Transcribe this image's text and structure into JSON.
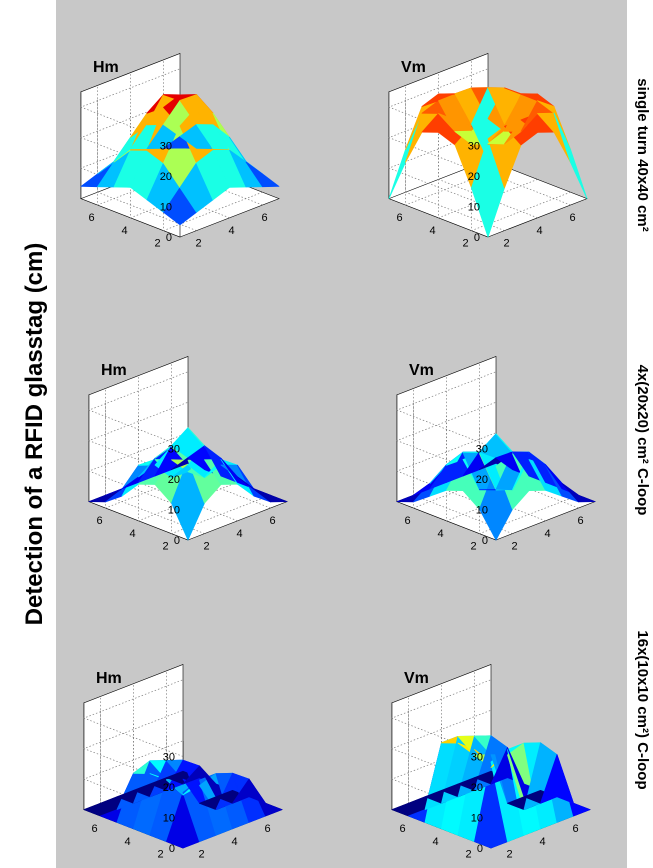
{
  "figure": {
    "ylabel": "Detection of a RFID glasstag (cm)",
    "colors": {
      "background": "#c8c8c8",
      "pane": "#ffffff",
      "grid": "#7a7a7a"
    },
    "rows": [
      {
        "label": "single turn 40x40 cm²"
      },
      {
        "label": "4x(20x20) cm² C-loop"
      },
      {
        "label": "16x(10x10 cm²) C-loop"
      }
    ]
  },
  "chart_data": [
    {
      "type": "surface",
      "title": "Hm",
      "row": "single turn 40x40 cm²",
      "x": [
        1,
        2,
        3,
        4,
        5,
        6,
        7
      ],
      "y": [
        1,
        2,
        3,
        4,
        5,
        6,
        7
      ],
      "zlim": [
        0,
        35
      ],
      "zticks": [
        0,
        10,
        20,
        30
      ],
      "xticks": [
        2,
        4,
        6
      ],
      "yticks": [
        2,
        4,
        6
      ],
      "colormap": "jet",
      "z": [
        [
          4,
          6,
          8,
          10,
          8,
          6,
          4
        ],
        [
          6,
          12,
          18,
          20,
          18,
          12,
          6
        ],
        [
          8,
          18,
          28,
          32,
          28,
          18,
          8
        ],
        [
          10,
          20,
          32,
          34,
          32,
          20,
          10
        ],
        [
          8,
          18,
          28,
          32,
          28,
          18,
          8
        ],
        [
          6,
          12,
          18,
          20,
          18,
          12,
          6
        ],
        [
          4,
          6,
          8,
          10,
          8,
          6,
          4
        ]
      ]
    },
    {
      "type": "surface",
      "title": "Vm",
      "row": "single turn 40x40 cm²",
      "x": [
        1,
        2,
        3,
        4,
        5,
        6,
        7
      ],
      "y": [
        1,
        2,
        3,
        4,
        5,
        6,
        7
      ],
      "zlim": [
        0,
        35
      ],
      "zticks": [
        0,
        10,
        20,
        30
      ],
      "xticks": [
        2,
        4,
        6
      ],
      "yticks": [
        2,
        4,
        6
      ],
      "colormap": "jet",
      "z": [
        [
          0,
          14,
          26,
          28,
          26,
          14,
          0
        ],
        [
          14,
          28,
          30,
          30,
          30,
          28,
          14
        ],
        [
          26,
          30,
          22,
          20,
          22,
          30,
          26
        ],
        [
          28,
          30,
          20,
          18,
          20,
          30,
          28
        ],
        [
          26,
          30,
          22,
          20,
          22,
          30,
          26
        ],
        [
          14,
          28,
          30,
          30,
          30,
          28,
          14
        ],
        [
          0,
          14,
          26,
          28,
          26,
          14,
          0
        ]
      ]
    },
    {
      "type": "surface",
      "title": "Hm",
      "row": "4x(20x20) cm² C-loop",
      "x": [
        1,
        2,
        3,
        4,
        5,
        6,
        7
      ],
      "y": [
        1,
        2,
        3,
        4,
        5,
        6,
        7
      ],
      "zlim": [
        0,
        35
      ],
      "zticks": [
        0,
        10,
        20,
        30
      ],
      "xticks": [
        2,
        4,
        6
      ],
      "yticks": [
        2,
        4,
        6
      ],
      "colormap": "jet",
      "z": [
        [
          0,
          10,
          14,
          12,
          6,
          2,
          0
        ],
        [
          10,
          22,
          20,
          18,
          14,
          4,
          0
        ],
        [
          14,
          20,
          14,
          10,
          12,
          6,
          0
        ],
        [
          12,
          18,
          10,
          12,
          16,
          10,
          0
        ],
        [
          6,
          14,
          12,
          16,
          20,
          12,
          0
        ],
        [
          2,
          4,
          6,
          10,
          12,
          6,
          0
        ],
        [
          0,
          0,
          0,
          0,
          0,
          0,
          0
        ]
      ]
    },
    {
      "type": "surface",
      "title": "Vm",
      "row": "4x(20x20) cm² C-loop",
      "x": [
        1,
        2,
        3,
        4,
        5,
        6,
        7
      ],
      "y": [
        1,
        2,
        3,
        4,
        5,
        6,
        7
      ],
      "zlim": [
        0,
        35
      ],
      "zticks": [
        0,
        10,
        20,
        30
      ],
      "xticks": [
        2,
        4,
        6
      ],
      "yticks": [
        2,
        4,
        6
      ],
      "colormap": "jet",
      "z": [
        [
          0,
          8,
          12,
          10,
          6,
          2,
          0
        ],
        [
          8,
          20,
          22,
          18,
          14,
          6,
          0
        ],
        [
          12,
          22,
          8,
          6,
          16,
          10,
          0
        ],
        [
          10,
          18,
          6,
          4,
          14,
          12,
          0
        ],
        [
          6,
          14,
          16,
          14,
          18,
          10,
          0
        ],
        [
          2,
          6,
          10,
          12,
          10,
          6,
          0
        ],
        [
          0,
          0,
          0,
          0,
          0,
          0,
          0
        ]
      ]
    },
    {
      "type": "surface",
      "title": "Hm",
      "row": "16x(10x10 cm²) C-loop",
      "x": [
        1,
        2,
        3,
        4,
        5,
        6,
        7
      ],
      "y": [
        1,
        2,
        3,
        4,
        5,
        6,
        7
      ],
      "zlim": [
        0,
        35
      ],
      "zticks": [
        0,
        10,
        20,
        30
      ],
      "xticks": [
        2,
        4,
        6
      ],
      "yticks": [
        2,
        4,
        6
      ],
      "colormap": "jet",
      "z": [
        [
          0,
          0,
          0,
          0,
          0,
          0,
          0
        ],
        [
          0,
          14,
          16,
          16,
          14,
          0,
          0
        ],
        [
          0,
          16,
          9,
          12,
          16,
          0,
          0
        ],
        [
          0,
          16,
          10,
          10,
          14,
          0,
          0
        ],
        [
          0,
          14,
          0,
          0,
          12,
          0,
          0
        ],
        [
          0,
          10,
          0,
          0,
          8,
          0,
          0
        ],
        [
          0,
          0,
          0,
          0,
          0,
          0,
          0
        ]
      ]
    },
    {
      "type": "surface",
      "title": "Vm",
      "row": "16x(10x10 cm²) C-loop",
      "x": [
        1,
        2,
        3,
        4,
        5,
        6,
        7
      ],
      "y": [
        1,
        2,
        3,
        4,
        5,
        6,
        7
      ],
      "zlim": [
        0,
        35
      ],
      "zticks": [
        0,
        10,
        20,
        30
      ],
      "xticks": [
        2,
        4,
        6
      ],
      "yticks": [
        2,
        4,
        6
      ],
      "colormap": "jet",
      "z": [
        [
          0,
          0,
          0,
          0,
          0,
          0,
          0
        ],
        [
          0,
          24,
          26,
          26,
          24,
          0,
          0
        ],
        [
          0,
          26,
          18,
          20,
          24,
          0,
          0
        ],
        [
          0,
          26,
          20,
          18,
          22,
          0,
          0
        ],
        [
          0,
          24,
          0,
          0,
          20,
          0,
          0
        ],
        [
          0,
          18,
          0,
          0,
          14,
          0,
          0
        ],
        [
          0,
          0,
          0,
          0,
          0,
          0,
          0
        ]
      ]
    }
  ]
}
